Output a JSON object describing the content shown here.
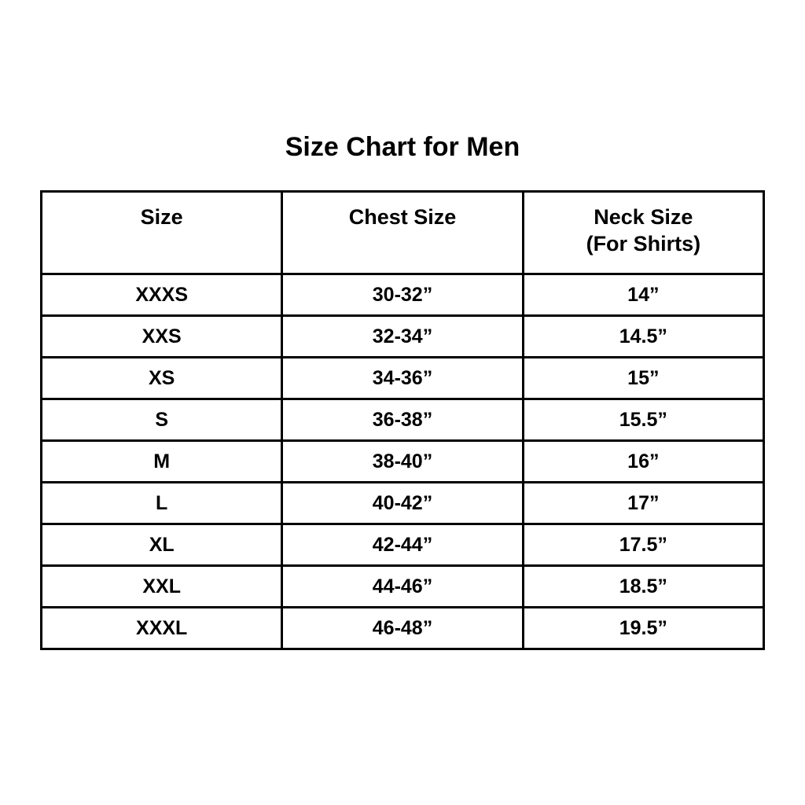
{
  "page": {
    "background": "#ffffff",
    "text_color": "#000000",
    "border_color": "#000000"
  },
  "title": "Size Chart for Men",
  "table": {
    "headers": {
      "size": "Size",
      "chest": "Chest Size",
      "neck_line1": "Neck Size",
      "neck_line2": "(For Shirts)"
    }
  },
  "chart_data": {
    "type": "table",
    "title": "Size Chart for Men",
    "columns": [
      "Size",
      "Chest Size",
      "Neck Size (For Shirts)"
    ],
    "rows": [
      [
        "XXXS",
        "30-32”",
        "14”"
      ],
      [
        "XXS",
        "32-34”",
        "14.5”"
      ],
      [
        "XS",
        "34-36”",
        "15”"
      ],
      [
        "S",
        "36-38”",
        "15.5”"
      ],
      [
        "M",
        "38-40”",
        "16”"
      ],
      [
        "L",
        "40-42”",
        "17”"
      ],
      [
        "XL",
        "42-44”",
        "17.5”"
      ],
      [
        "XXL",
        "44-46”",
        "18.5”"
      ],
      [
        "XXXL",
        "46-48”",
        "19.5”"
      ]
    ],
    "layout": {
      "legend": false,
      "grid": true,
      "columns_equal_width": true
    }
  }
}
